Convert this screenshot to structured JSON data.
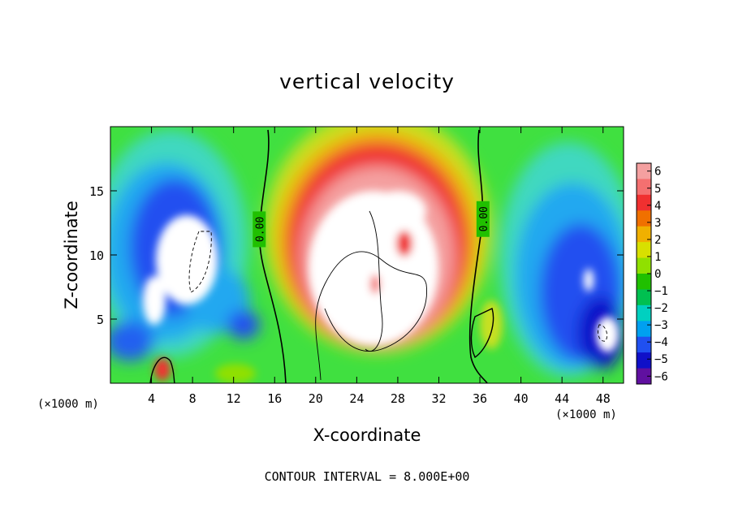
{
  "chart_data": {
    "type": "heatmap",
    "title": "vertical velocity",
    "xlabel": "X-coordinate",
    "ylabel": "Z-coordinate",
    "x_unit_label": "(×1000 m)",
    "x_ticks": [
      4,
      8,
      12,
      16,
      20,
      24,
      28,
      32,
      36,
      40,
      44,
      48
    ],
    "y_ticks": [
      5,
      10,
      15
    ],
    "xlim": [
      0,
      50
    ],
    "ylim": [
      0,
      20
    ],
    "colorbar": {
      "ticks": [
        6,
        5,
        4,
        3,
        2,
        1,
        0,
        -1,
        -2,
        -3,
        -4,
        -5,
        -6
      ],
      "colors": [
        "#f4a0a0",
        "#f47070",
        "#f03030",
        "#f07000",
        "#f0b000",
        "#d8e000",
        "#90e000",
        "#20c000",
        "#00c050",
        "#00d0c0",
        "#00a0f0",
        "#2050f0",
        "#1010c8",
        "#6010a0"
      ]
    },
    "contour_labels": [
      {
        "text": "0.00",
        "x": 14.5,
        "z": 12.0
      },
      {
        "text": "0.00",
        "x": 36.3,
        "z": 12.8
      }
    ],
    "footer": "CONTOUR INTERVAL = 8.000E+00",
    "grid": false
  }
}
